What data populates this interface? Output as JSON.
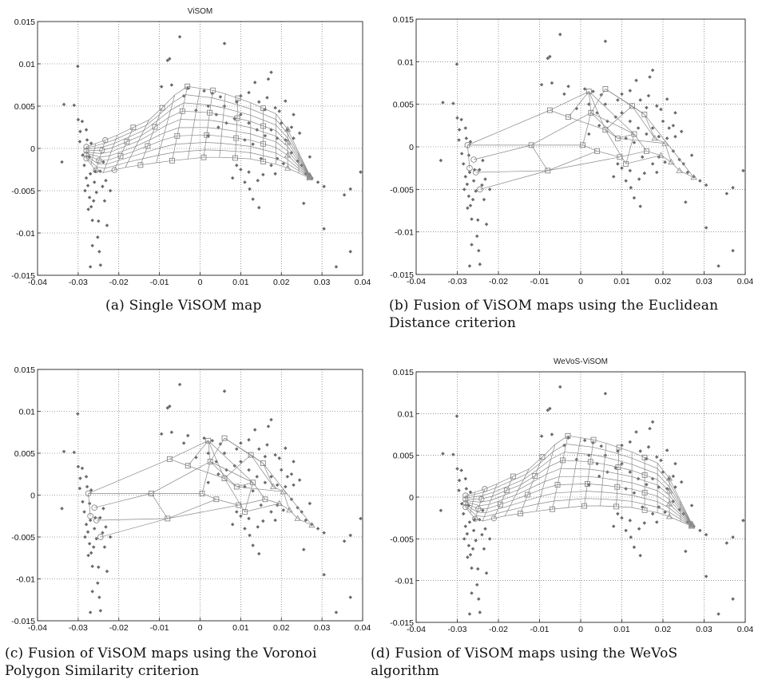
{
  "figure": {
    "captions": [
      [
        "(a) Single ViSOM map"
      ],
      [
        "(b) Fusion of ViSOM maps using the Euclidean",
        "Distance criterion"
      ],
      [
        "(c) Fusion of ViSOM maps using the Voronoi",
        "Polygon Similarity criterion"
      ],
      [
        "(d) Fusion of ViSOM maps using the WeVoS",
        "algorithm"
      ]
    ]
  },
  "chart_data": [
    {
      "type": "scatter",
      "title": "ViSOM",
      "variant": "grid",
      "xlim": [
        -0.04,
        0.04
      ],
      "ylim": [
        -0.015,
        0.015
      ],
      "xticks": [
        -0.04,
        -0.03,
        -0.02,
        -0.01,
        0,
        0.01,
        0.02,
        0.03,
        0.04
      ],
      "yticks": [
        -0.015,
        -0.01,
        -0.005,
        0,
        0.005,
        0.01,
        0.015
      ],
      "xtick_labels": [
        "-0.04",
        "-0.03",
        "-0.02",
        "-0.01",
        "0",
        "0.01",
        "0.02",
        "0.03",
        "0.04"
      ],
      "ytick_labels": [
        "-0.015",
        "-0.01",
        "-0.005",
        "0",
        "0.005",
        "0.01",
        "0.015"
      ],
      "grid": true
    },
    {
      "type": "scatter",
      "title": "",
      "variant": "fusion",
      "xlim": [
        -0.04,
        0.04
      ],
      "ylim": [
        -0.015,
        0.015
      ],
      "xticks": [
        -0.04,
        -0.03,
        -0.02,
        -0.01,
        0,
        0.01,
        0.02,
        0.03,
        0.04
      ],
      "yticks": [
        -0.015,
        -0.01,
        -0.005,
        0,
        0.005,
        0.01,
        0.015
      ],
      "xtick_labels": [
        "-0.04",
        "-0.03",
        "-0.02",
        "-0.01",
        "0",
        "0.01",
        "0.02",
        "0.03",
        "0.04"
      ],
      "ytick_labels": [
        "-0.015",
        "-0.01",
        "-0.005",
        "0",
        "0.005",
        "0.01",
        "0.015"
      ],
      "grid": true
    },
    {
      "type": "scatter",
      "title": "",
      "variant": "fusion",
      "xlim": [
        -0.04,
        0.04
      ],
      "ylim": [
        -0.015,
        0.015
      ],
      "xticks": [
        -0.04,
        -0.03,
        -0.02,
        -0.01,
        0,
        0.01,
        0.02,
        0.03,
        0.04
      ],
      "yticks": [
        -0.015,
        -0.01,
        -0.005,
        0,
        0.005,
        0.01,
        0.015
      ],
      "xtick_labels": [
        "-0.04",
        "-0.03",
        "-0.02",
        "-0.01",
        "0",
        "0.01",
        "0.02",
        "0.03",
        "0.04"
      ],
      "ytick_labels": [
        "-0.015",
        "-0.01",
        "-0.005",
        "0",
        "0.005",
        "0.01",
        "0.015"
      ],
      "grid": true
    },
    {
      "type": "scatter",
      "title": "WeVoS-ViSOM",
      "variant": "grid",
      "xlim": [
        -0.04,
        0.04
      ],
      "ylim": [
        -0.015,
        0.015
      ],
      "xticks": [
        -0.04,
        -0.03,
        -0.02,
        -0.01,
        0,
        0.01,
        0.02,
        0.03,
        0.04
      ],
      "yticks": [
        -0.015,
        -0.01,
        -0.005,
        0,
        0.005,
        0.01,
        0.015
      ],
      "xtick_labels": [
        "-0.04",
        "-0.03",
        "-0.02",
        "-0.01",
        "0",
        "0.01",
        "0.02",
        "0.03",
        "0.04"
      ],
      "ytick_labels": [
        "-0.015",
        "-0.01",
        "-0.005",
        "0",
        "0.005",
        "0.01",
        "0.015"
      ],
      "grid": true
    }
  ],
  "data_points": [
    [
      -0.0335,
      0.0052
    ],
    [
      -0.031,
      0.0051
    ],
    [
      -0.0301,
      0.0097
    ],
    [
      -0.03,
      0.0034
    ],
    [
      -0.0295,
      0.002
    ],
    [
      -0.029,
      0.0032
    ],
    [
      -0.0296,
      0.0008
    ],
    [
      -0.0289,
      -0.0008
    ],
    [
      -0.0285,
      -0.002
    ],
    [
      -0.028,
      -0.0035
    ],
    [
      -0.0283,
      -0.005
    ],
    [
      -0.0276,
      -0.0044
    ],
    [
      -0.0272,
      -0.0058
    ],
    [
      -0.0275,
      -0.0072
    ],
    [
      -0.0268,
      -0.0069
    ],
    [
      -0.0265,
      -0.0085
    ],
    [
      -0.0262,
      -0.0062
    ],
    [
      -0.026,
      -0.004
    ],
    [
      -0.0258,
      -0.0027
    ],
    [
      -0.0255,
      -0.0052
    ],
    [
      -0.025,
      -0.0086
    ],
    [
      -0.0252,
      -0.0105
    ],
    [
      -0.0248,
      -0.0122
    ],
    [
      -0.027,
      -0.003
    ],
    [
      -0.0272,
      -0.001
    ],
    [
      -0.0278,
      0.001
    ],
    [
      -0.0268,
      0.0006
    ],
    [
      -0.028,
      0.0022
    ],
    [
      -0.034,
      -0.0016
    ],
    [
      -0.027,
      -0.014
    ],
    [
      -0.0245,
      -0.0138
    ],
    [
      -0.0265,
      -0.0115
    ],
    [
      -0.024,
      -0.0045
    ],
    [
      -0.0235,
      -0.0062
    ],
    [
      -0.0232,
      -0.0038
    ],
    [
      -0.0229,
      -0.0091
    ],
    [
      -0.0246,
      -0.0027
    ],
    [
      -0.0238,
      -0.0016
    ],
    [
      -0.0221,
      -0.005
    ],
    [
      -0.008,
      0.0104
    ],
    [
      -0.0075,
      0.0106
    ],
    [
      -0.005,
      0.0132
    ],
    [
      0.006,
      0.0124
    ],
    [
      -0.0095,
      0.0073
    ],
    [
      -0.007,
      0.0075
    ],
    [
      -0.004,
      0.0062
    ],
    [
      -0.003,
      0.0071
    ],
    [
      0.001,
      0.0068
    ],
    [
      0.003,
      0.0065
    ],
    [
      0.005,
      0.0061
    ],
    [
      0.009,
      0.0055
    ],
    [
      0.012,
      0.0066
    ],
    [
      0.0135,
      0.0078
    ],
    [
      0.0175,
      0.009
    ],
    [
      0.0168,
      0.0082
    ],
    [
      0.0145,
      0.0055
    ],
    [
      0.016,
      0.0046
    ],
    [
      0.0185,
      0.0048
    ],
    [
      0.0195,
      0.0044
    ],
    [
      0.021,
      0.0056
    ],
    [
      0.02,
      0.003
    ],
    [
      0.0215,
      0.0022
    ],
    [
      0.023,
      0.0012
    ],
    [
      0.0225,
      -0.0005
    ],
    [
      0.024,
      -0.0015
    ],
    [
      0.025,
      -0.002
    ],
    [
      0.026,
      -0.003
    ],
    [
      0.0205,
      -0.0018
    ],
    [
      0.019,
      -0.0012
    ],
    [
      0.0175,
      -0.002
    ],
    [
      0.0155,
      -0.0031
    ],
    [
      0.0142,
      -0.0038
    ],
    [
      0.0122,
      -0.0048
    ],
    [
      0.012,
      -0.0028
    ],
    [
      0.01,
      -0.0025
    ],
    [
      0.009,
      -0.002
    ],
    [
      0.015,
      -0.0012
    ],
    [
      0.013,
      0.0005
    ],
    [
      0.011,
      0.001
    ],
    [
      0.016,
      0.0015
    ],
    [
      0.0175,
      0.0022
    ],
    [
      0.019,
      0.0012
    ],
    [
      0.014,
      0.0022
    ],
    [
      0.012,
      0.003
    ],
    [
      0.01,
      0.004
    ],
    [
      0.0085,
      0.0035
    ],
    [
      0.0065,
      0.003
    ],
    [
      0.0045,
      0.0025
    ],
    [
      0.002,
      0.0015
    ],
    [
      0.023,
      0.004
    ],
    [
      0.0245,
      0.0018
    ],
    [
      0.027,
      -0.001
    ],
    [
      0.029,
      -0.004
    ],
    [
      0.0305,
      -0.0045
    ],
    [
      0.0305,
      -0.0095
    ],
    [
      0.0355,
      -0.0055
    ],
    [
      0.037,
      -0.0048
    ],
    [
      0.0395,
      -0.0028
    ],
    [
      0.0335,
      -0.014
    ],
    [
      0.037,
      -0.0122
    ],
    [
      0.0255,
      -0.0065
    ],
    [
      0.0145,
      -0.007
    ],
    [
      0.0275,
      -0.0035
    ],
    [
      0.01,
      0.0062
    ],
    [
      0.006,
      0.005
    ],
    [
      0.002,
      0.005
    ],
    [
      -0.001,
      0.0045
    ],
    [
      0.0165,
      0.006
    ],
    [
      0.021,
      0.001
    ],
    [
      0.0225,
      0.0025
    ],
    [
      0.0185,
      -0.003
    ],
    [
      0.011,
      -0.004
    ],
    [
      0.008,
      -0.0035
    ],
    [
      0.004,
      0.004
    ],
    [
      0.013,
      -0.006
    ]
  ]
}
